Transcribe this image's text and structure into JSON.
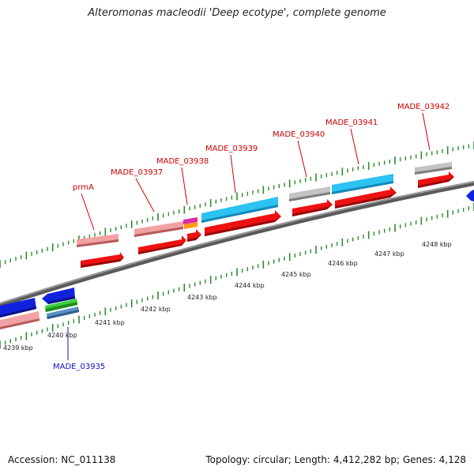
{
  "title": "Alteromonas macleodii 'Deep ecotype', complete genome",
  "accession": "Accession: NC_011138",
  "summary": "Topology: circular; Length: 4,412,282 bp; Genes: 4,128",
  "colors": {
    "forward_label": "#cc0000",
    "reverse_label": "#1010c0",
    "backbone": "#7a7a7a",
    "tick": "#2e8b2e",
    "cds_red": "#ee1111",
    "cds_pink": "#e88888",
    "cds_cyan": "#22bbee",
    "cds_gray": "#b8b8b8",
    "cds_blue": "#1122dd",
    "cds_green": "#44cc44",
    "cds_steel": "#5588bb",
    "cds_magenta": "#dd22aa",
    "cds_orange": "#ff8800"
  },
  "kbp_labels": [
    "4239 kbp",
    "4240 kbp",
    "4241 kbp",
    "4242 kbp",
    "4243 kbp",
    "4244 kbp",
    "4245 kbp",
    "4246 kbp",
    "4247 kbp",
    "4248 kbp"
  ],
  "gene_labels": [
    {
      "name": "prmA",
      "strand": "forward"
    },
    {
      "name": "MADE_03937",
      "strand": "forward"
    },
    {
      "name": "MADE_03938",
      "strand": "forward"
    },
    {
      "name": "MADE_03939",
      "strand": "forward"
    },
    {
      "name": "MADE_03940",
      "strand": "forward"
    },
    {
      "name": "MADE_03941",
      "strand": "forward"
    },
    {
      "name": "MADE_03942",
      "strand": "forward"
    },
    {
      "name": "MADE_03935",
      "strand": "reverse"
    }
  ]
}
